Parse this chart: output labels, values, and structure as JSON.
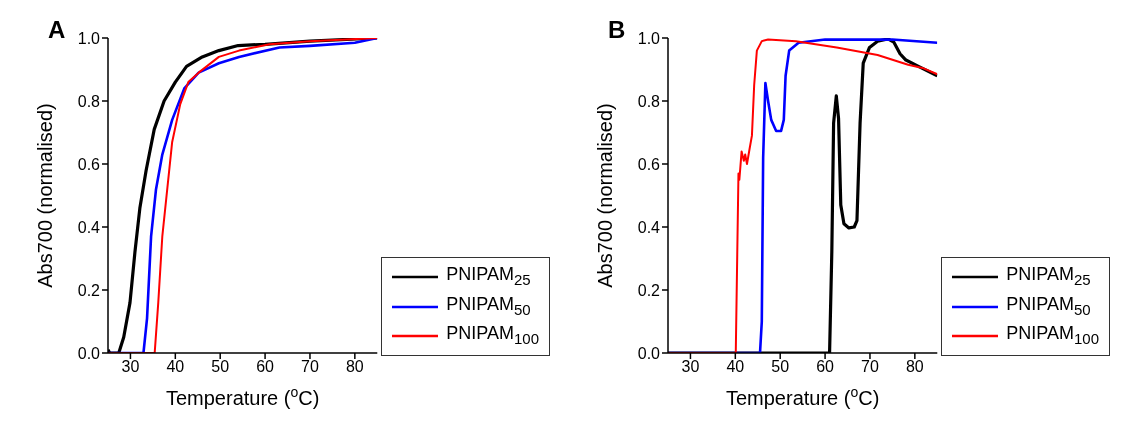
{
  "chart_data": [
    {
      "type": "line",
      "title": "A",
      "xlabel": "Temperature ($^{o}$C)",
      "ylabel": "Abs700 (normalised)",
      "xlim": [
        25,
        85
      ],
      "xticks": [
        30,
        40,
        50,
        60,
        70,
        80
      ],
      "ylim": [
        0,
        1.0
      ],
      "yticks": [
        {
          "value": 0,
          "label": "0.0"
        },
        {
          "value": 0.2,
          "label": "0.2"
        },
        {
          "value": 0.4,
          "label": "0.4"
        },
        {
          "value": 0.6,
          "label": "0.6"
        },
        {
          "value": 0.8,
          "label": "0.8"
        },
        {
          "value": 1.0,
          "label": "1.0"
        }
      ],
      "legend": "bottom right",
      "marker": "none",
      "line_style": "solid",
      "series": [
        {
          "name": "PNIPAM$_{25}$",
          "color": "#000000",
          "x": [
            25,
            25.4,
            27.4,
            28.5,
            29.9,
            31,
            32.1,
            33.5,
            35.3,
            37.5,
            40,
            42.5,
            46,
            49.7,
            54,
            60,
            70,
            85
          ],
          "values": [
            0.01,
            0,
            0,
            0.05,
            0.16,
            0.32,
            0.46,
            0.58,
            0.71,
            0.8,
            0.86,
            0.91,
            0.94,
            0.96,
            0.976,
            0.98,
            0.99,
            1.0
          ]
        },
        {
          "name": "PNIPAM$_{50}$",
          "color": "#0000ff",
          "x": [
            25,
            32.9,
            33.7,
            34.6,
            35.7,
            37.1,
            39.3,
            42,
            45.2,
            49.7,
            54.2,
            63.2,
            70,
            80,
            85
          ],
          "values": [
            0,
            0,
            0.11,
            0.37,
            0.52,
            0.63,
            0.74,
            0.84,
            0.89,
            0.92,
            0.94,
            0.97,
            0.975,
            0.985,
            1.0
          ]
        },
        {
          "name": "PNIPAM$_{100}$",
          "color": "#ff0000",
          "x": [
            25,
            35.4,
            36.2,
            37.1,
            38.2,
            39.3,
            41.1,
            42.9,
            45.2,
            49.7,
            54.2,
            61,
            70,
            85
          ],
          "values": [
            0,
            0,
            0.16,
            0.37,
            0.52,
            0.67,
            0.79,
            0.86,
            0.89,
            0.94,
            0.96,
            0.98,
            0.99,
            1.0
          ]
        }
      ]
    },
    {
      "type": "line",
      "title": "B",
      "xlabel": "Temperature ($^{o}$C)",
      "ylabel": "Abs700 (normalised)",
      "xlim": [
        25,
        85
      ],
      "xticks": [
        30,
        40,
        50,
        60,
        70,
        80
      ],
      "ylim": [
        0,
        1.0
      ],
      "yticks": [
        {
          "value": 0,
          "label": "0.0"
        },
        {
          "value": 0.2,
          "label": "0.2"
        },
        {
          "value": 0.4,
          "label": "0.4"
        },
        {
          "value": 0.6,
          "label": "0.6"
        },
        {
          "value": 0.8,
          "label": "0.8"
        },
        {
          "value": 1.0,
          "label": "1.0"
        }
      ],
      "legend": "bottom right",
      "marker": "none",
      "line_style": "solid",
      "series": [
        {
          "name": "PNIPAM$_{25}$",
          "color": "#000000",
          "x": [
            25,
            61,
            61.5,
            61.9,
            62.5,
            63,
            63.5,
            64.2,
            65.3,
            66.5,
            67.1,
            67.8,
            68.5,
            69.9,
            71.7,
            74,
            75.3,
            76.7,
            78,
            80.8,
            85
          ],
          "values": [
            0,
            0,
            0.32,
            0.73,
            0.816,
            0.745,
            0.47,
            0.41,
            0.397,
            0.4,
            0.42,
            0.73,
            0.92,
            0.97,
            0.99,
            0.997,
            0.987,
            0.95,
            0.93,
            0.91,
            0.88
          ]
        },
        {
          "name": "PNIPAM$_{50}$",
          "color": "#0000ff",
          "x": [
            25,
            45.5,
            45.9,
            46.2,
            46.7,
            47.3,
            48,
            49.1,
            50.2,
            50.8,
            51.2,
            52,
            54.1,
            60,
            75,
            85
          ],
          "values": [
            0,
            0,
            0.1,
            0.62,
            0.857,
            0.8,
            0.74,
            0.705,
            0.705,
            0.74,
            0.88,
            0.96,
            0.985,
            0.995,
            0.995,
            0.985
          ]
        },
        {
          "name": "PNIPAM$_{100}$",
          "color": "#ff0000",
          "x": [
            25,
            40.1,
            40.7,
            40.9,
            41.4,
            41.9,
            42.2,
            42.6,
            43.2,
            43.7,
            44.2,
            44.8,
            45.9,
            47.3,
            53.5,
            62.6,
            71.7,
            78.5,
            81.7,
            85
          ],
          "values": [
            0,
            0,
            0.57,
            0.55,
            0.64,
            0.61,
            0.63,
            0.6,
            0.65,
            0.69,
            0.85,
            0.96,
            0.99,
            0.995,
            0.99,
            0.97,
            0.946,
            0.915,
            0.905,
            0.885
          ]
        }
      ]
    }
  ]
}
